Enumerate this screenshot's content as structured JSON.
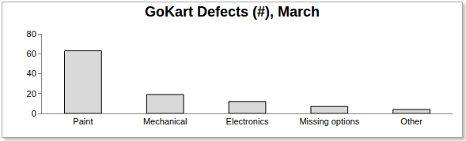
{
  "chart_data": {
    "type": "bar",
    "title": "GoKart Defects (#), March",
    "categories": [
      "Paint",
      "Mechanical",
      "Electronics",
      "Missing options",
      "Other"
    ],
    "values": [
      63,
      19,
      12,
      7,
      4
    ],
    "color": "#d9d9d9",
    "ylim": [
      0,
      80
    ],
    "yticks": [
      0,
      20,
      40,
      60,
      80
    ],
    "grid": false
  }
}
